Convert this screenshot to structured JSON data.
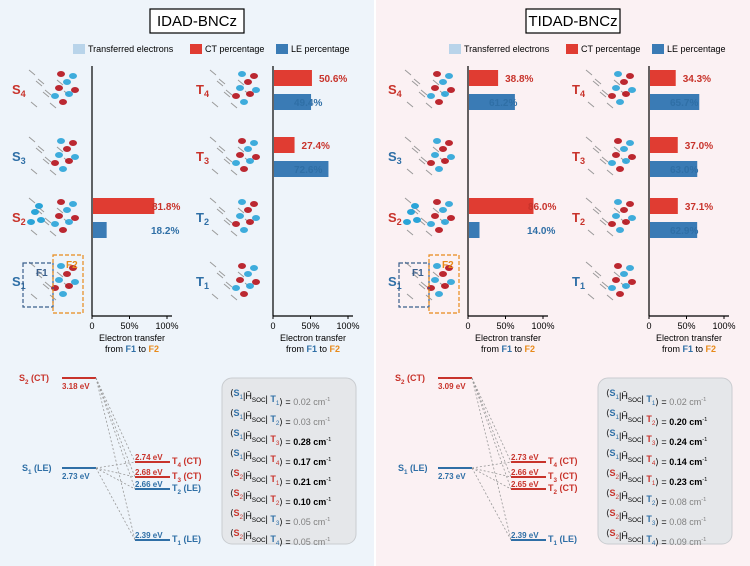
{
  "colors": {
    "ct": "#e03c32",
    "le": "#3a7bb5",
    "transferred": "#b9d4ea",
    "red_text": "#c8332b",
    "blue_text": "#2f6fa6",
    "orange": "#e88a1a",
    "grey": "#808080",
    "black": "#000000"
  },
  "legend": {
    "transferred": "Transferred electrons",
    "ct": "CT percentage",
    "le": "LE percentage"
  },
  "axis": {
    "ticks": [
      "0",
      "50%",
      "100%"
    ],
    "label_line1": "Electron transfer",
    "label_line2_pre": "from ",
    "f1": "F1",
    "to": " to ",
    "f2": "F2"
  },
  "panels": [
    {
      "title": "IDAD-BNCz",
      "s_states": [
        {
          "label": "S",
          "sub": "4",
          "ct": null,
          "le": null
        },
        {
          "label": "S",
          "sub": "3",
          "ct": null,
          "le": null
        },
        {
          "label": "S",
          "sub": "2",
          "ct": 81.8,
          "le": 18.2,
          "ct_text": "81.8%",
          "le_text": "18.2%"
        },
        {
          "label": "S",
          "sub": "1",
          "ct": null,
          "le": null
        }
      ],
      "t_states": [
        {
          "label": "T",
          "sub": "4",
          "ct": 50.6,
          "le": 49.4,
          "ct_text": "50.6%",
          "le_text": "49.4%"
        },
        {
          "label": "T",
          "sub": "3",
          "ct": 27.4,
          "le": 72.6,
          "ct_text": "27.4%",
          "le_text": "72.6%"
        },
        {
          "label": "T",
          "sub": "2",
          "ct": null,
          "le": null
        },
        {
          "label": "T",
          "sub": "1",
          "ct": null,
          "le": null
        }
      ],
      "fragments": {
        "f1": "F1",
        "f2": "F2"
      },
      "energy": {
        "s2_label": "S",
        "s2_sub": "2",
        "s2_tag": " (CT)",
        "s2_ev": "3.18 eV",
        "s1_label": "S",
        "s1_sub": "1",
        "s1_tag": " (LE)",
        "s1_ev": "2.73 eV",
        "triplets": [
          {
            "ev": "2.74 eV",
            "label": "T",
            "sub": "4",
            "tag": " (CT)",
            "color": "red"
          },
          {
            "ev": "2.68 eV",
            "label": "T",
            "sub": "3",
            "tag": " (CT)",
            "color": "red"
          },
          {
            "ev": "2.66 eV",
            "label": "T",
            "sub": "2",
            "tag": " (LE)",
            "color": "blue"
          },
          {
            "ev": "2.39 eV",
            "label": "T",
            "sub": "1",
            "tag": " (LE)",
            "color": "blue"
          }
        ]
      },
      "soc": [
        {
          "s": "1",
          "t": "1",
          "value": "0.02 cm",
          "bold": false
        },
        {
          "s": "1",
          "t": "2",
          "value": "0.03 cm",
          "bold": false
        },
        {
          "s": "1",
          "t": "3",
          "value": "0.28 cm",
          "bold": true
        },
        {
          "s": "1",
          "t": "4",
          "value": "0.17 cm",
          "bold": true
        },
        {
          "s": "2",
          "t": "1",
          "value": "0.21 cm",
          "bold": true
        },
        {
          "s": "2",
          "t": "2",
          "value": "0.10 cm",
          "bold": true
        },
        {
          "s": "2",
          "t": "3",
          "value": "0.05 cm",
          "bold": false
        },
        {
          "s": "2",
          "t": "4",
          "value": "0.05 cm",
          "bold": false
        }
      ]
    },
    {
      "title": "TIDAD-BNCz",
      "s_states": [
        {
          "label": "S",
          "sub": "4",
          "ct": 38.8,
          "le": 61.2,
          "ct_text": "38.8%",
          "le_text": "61.2%"
        },
        {
          "label": "S",
          "sub": "3",
          "ct": null,
          "le": null
        },
        {
          "label": "S",
          "sub": "2",
          "ct": 86.0,
          "le": 14.0,
          "ct_text": "86.0%",
          "le_text": "14.0%"
        },
        {
          "label": "S",
          "sub": "1",
          "ct": null,
          "le": null
        }
      ],
      "t_states": [
        {
          "label": "T",
          "sub": "4",
          "ct": 34.3,
          "le": 65.7,
          "ct_text": "34.3%",
          "le_text": "65.7%"
        },
        {
          "label": "T",
          "sub": "3",
          "ct": 37.0,
          "le": 63.0,
          "ct_text": "37.0%",
          "le_text": "63.0%"
        },
        {
          "label": "T",
          "sub": "2",
          "ct": 37.1,
          "le": 62.9,
          "ct_text": "37.1%",
          "le_text": "62.9%"
        },
        {
          "label": "T",
          "sub": "1",
          "ct": null,
          "le": null
        }
      ],
      "fragments": {
        "f1": "F1",
        "f2": "F2"
      },
      "energy": {
        "s2_label": "S",
        "s2_sub": "2",
        "s2_tag": " (CT)",
        "s2_ev": "3.09 eV",
        "s1_label": "S",
        "s1_sub": "1",
        "s1_tag": " (LE)",
        "s1_ev": "2.73 eV",
        "triplets": [
          {
            "ev": "2.73 eV",
            "label": "T",
            "sub": "4",
            "tag": " (CT)",
            "color": "red"
          },
          {
            "ev": "2.66 eV",
            "label": "T",
            "sub": "3",
            "tag": " (CT)",
            "color": "red"
          },
          {
            "ev": "2.65 eV",
            "label": "T",
            "sub": "2",
            "tag": " (CT)",
            "color": "red"
          },
          {
            "ev": "2.39 eV",
            "label": "T",
            "sub": "1",
            "tag": " (LE)",
            "color": "blue"
          }
        ]
      },
      "soc": [
        {
          "s": "1",
          "t": "1",
          "value": "0.02 cm",
          "bold": false
        },
        {
          "s": "1",
          "t": "2",
          "value": "0.20 cm",
          "bold": true
        },
        {
          "s": "1",
          "t": "3",
          "value": "0.24 cm",
          "bold": true
        },
        {
          "s": "1",
          "t": "4",
          "value": "0.14 cm",
          "bold": true
        },
        {
          "s": "2",
          "t": "1",
          "value": "0.23 cm",
          "bold": true
        },
        {
          "s": "2",
          "t": "2",
          "value": "0.08 cm",
          "bold": false
        },
        {
          "s": "2",
          "t": "3",
          "value": "0.08 cm",
          "bold": false
        },
        {
          "s": "2",
          "t": "4",
          "value": "0.09 cm",
          "bold": false
        }
      ],
      "soc_op": {
        "h": "Ĥ",
        "sub": "SOC",
        "unit": "-1"
      }
    }
  ]
}
